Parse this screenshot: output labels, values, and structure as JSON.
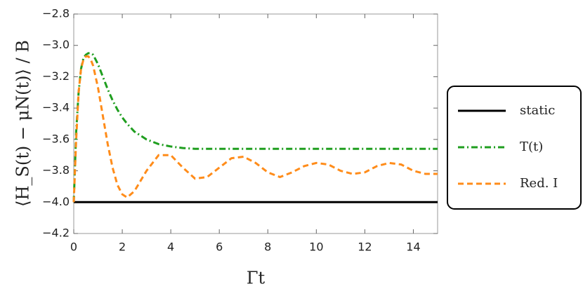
{
  "chart_data": {
    "type": "line",
    "x_label": "Γt",
    "y_label": "⟨H_S(t) − μN(t)⟩ / B",
    "x": [
      0,
      0.1,
      0.2,
      0.3,
      0.4,
      0.5,
      0.6,
      0.7,
      0.8,
      1.0,
      1.2,
      1.4,
      1.6,
      1.8,
      2.0,
      2.2,
      2.5,
      3,
      3.5,
      4,
      4.5,
      5,
      5.5,
      6,
      6.5,
      7,
      7.5,
      8,
      8.5,
      9,
      9.5,
      10,
      10.5,
      11,
      11.5,
      12,
      12.5,
      13,
      13.5,
      14,
      14.5,
      15
    ],
    "series": [
      {
        "name": "static",
        "color": "#000000",
        "style": "solid",
        "values": [
          -4.0,
          -4.0,
          -4.0,
          -4.0,
          -4.0,
          -4.0,
          -4.0,
          -4.0,
          -4.0,
          -4.0,
          -4.0,
          -4.0,
          -4.0,
          -4.0,
          -4.0,
          -4.0,
          -4.0,
          -4.0,
          -4.0,
          -4.0,
          -4.0,
          -4.0,
          -4.0,
          -4.0,
          -4.0,
          -4.0,
          -4.0,
          -4.0,
          -4.0,
          -4.0,
          -4.0,
          -4.0,
          -4.0,
          -4.0,
          -4.0,
          -4.0,
          -4.0,
          -4.0,
          -4.0,
          -4.0,
          -4.0,
          -4.0
        ]
      },
      {
        "name": "T(t)",
        "color": "#1f9e1f",
        "style": "dashdot",
        "values": [
          -4.0,
          -3.55,
          -3.3,
          -3.15,
          -3.08,
          -3.06,
          -3.05,
          -3.05,
          -3.06,
          -3.12,
          -3.2,
          -3.28,
          -3.35,
          -3.41,
          -3.46,
          -3.5,
          -3.55,
          -3.6,
          -3.63,
          -3.645,
          -3.655,
          -3.66,
          -3.66,
          -3.66,
          -3.66,
          -3.66,
          -3.66,
          -3.66,
          -3.66,
          -3.66,
          -3.66,
          -3.66,
          -3.66,
          -3.66,
          -3.66,
          -3.66,
          -3.66,
          -3.66,
          -3.66,
          -3.66,
          -3.66,
          -3.66
        ]
      },
      {
        "name": "Red. I",
        "color": "#ff8c1a",
        "style": "dashed",
        "values": [
          -4.0,
          -3.6,
          -3.3,
          -3.15,
          -3.09,
          -3.07,
          -3.07,
          -3.09,
          -3.13,
          -3.27,
          -3.45,
          -3.63,
          -3.78,
          -3.89,
          -3.95,
          -3.97,
          -3.93,
          -3.8,
          -3.7,
          -3.7,
          -3.78,
          -3.85,
          -3.84,
          -3.78,
          -3.72,
          -3.71,
          -3.75,
          -3.81,
          -3.84,
          -3.81,
          -3.77,
          -3.75,
          -3.76,
          -3.8,
          -3.82,
          -3.81,
          -3.77,
          -3.75,
          -3.76,
          -3.8,
          -3.82,
          -3.82
        ]
      }
    ],
    "xlim": [
      0,
      15
    ],
    "xticks": [
      0,
      2,
      4,
      6,
      8,
      10,
      12,
      14
    ],
    "ylim": [
      -4.2,
      -2.8
    ],
    "yticks": [
      {
        "value": -2.8,
        "label": "−2.8"
      },
      {
        "value": -3.0,
        "label": "−3.0"
      },
      {
        "value": -3.2,
        "label": "−3.2"
      },
      {
        "value": -3.4,
        "label": "−3.4"
      },
      {
        "value": -3.6,
        "label": "−3.6"
      },
      {
        "value": -3.8,
        "label": "−3.8"
      },
      {
        "value": -4.0,
        "label": "−4.0"
      },
      {
        "value": -4.2,
        "label": "−4.2"
      }
    ],
    "legend": "right"
  }
}
